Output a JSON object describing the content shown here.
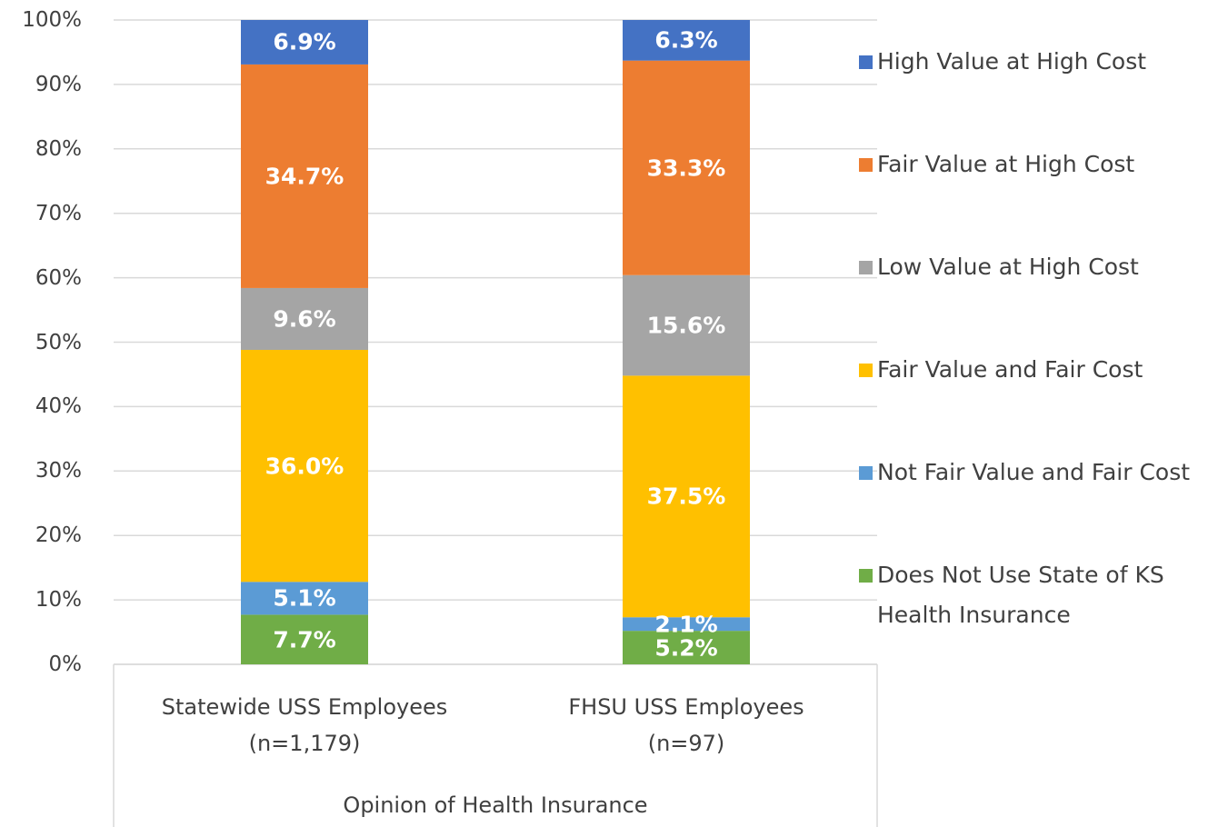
{
  "chart_data": {
    "type": "stacked_bar_100",
    "x_label": "Opinion of Health Insurance",
    "categories": [
      "Statewide USS Employees\n(n=1,179)",
      "FHSU USS Employees\n(n=97)"
    ],
    "ylim": [
      0,
      100
    ],
    "yticks": [
      {
        "value": 0,
        "label": "0%"
      },
      {
        "value": 10,
        "label": "10%"
      },
      {
        "value": 20,
        "label": "20%"
      },
      {
        "value": 30,
        "label": "30%"
      },
      {
        "value": 40,
        "label": "40%"
      },
      {
        "value": 50,
        "label": "50%"
      },
      {
        "value": 60,
        "label": "60%"
      },
      {
        "value": 70,
        "label": "70%"
      },
      {
        "value": 80,
        "label": "80%"
      },
      {
        "value": 90,
        "label": "90%"
      },
      {
        "value": 100,
        "label": "100%"
      }
    ],
    "grid": true,
    "legend": "right",
    "series": [
      {
        "name": "Does Not Use State of KS Health Insurance",
        "color": "#70ad47",
        "values": [
          7.7,
          5.2
        ],
        "value_labels": [
          "7.7%",
          "5.2%"
        ]
      },
      {
        "name": "Not Fair Value and Fair Cost",
        "color": "#5b9bd5",
        "values": [
          5.1,
          2.1
        ],
        "value_labels": [
          "5.1%",
          "2.1%"
        ]
      },
      {
        "name": "Fair Value and Fair Cost",
        "color": "#ffc000",
        "values": [
          36.0,
          37.5
        ],
        "value_labels": [
          "36.0%",
          "37.5%"
        ]
      },
      {
        "name": "Low Value at High Cost",
        "color": "#a5a5a5",
        "values": [
          9.6,
          15.6
        ],
        "value_labels": [
          "9.6%",
          "15.6%"
        ]
      },
      {
        "name": "Fair Value at High Cost",
        "color": "#ed7d31",
        "values": [
          34.7,
          33.3
        ],
        "value_labels": [
          "34.7%",
          "33.3%"
        ]
      },
      {
        "name": "High Value at High Cost",
        "color": "#4472c4",
        "values": [
          6.9,
          6.3
        ],
        "value_labels": [
          "6.9%",
          "6.3%"
        ]
      }
    ]
  }
}
